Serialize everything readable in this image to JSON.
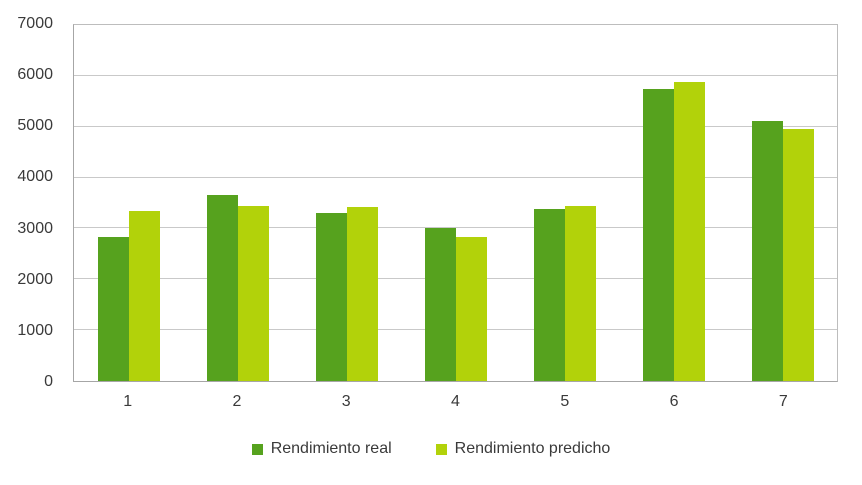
{
  "chart_data": {
    "type": "bar",
    "title": "",
    "xlabel": "",
    "ylabel": "",
    "categories": [
      "1",
      "2",
      "3",
      "4",
      "5",
      "6",
      "7"
    ],
    "series": [
      {
        "name": "Rendimiento real",
        "color": "#56a21e",
        "values": [
          2830,
          3650,
          3300,
          3000,
          3390,
          5750,
          5120
        ]
      },
      {
        "name": "Rendimiento predicho",
        "color": "#b2d20a",
        "values": [
          3350,
          3450,
          3430,
          2840,
          3450,
          5880,
          4950
        ]
      }
    ],
    "ylim": [
      0,
      7000
    ],
    "yticks": [
      0,
      1000,
      2000,
      3000,
      4000,
      5000,
      6000,
      7000
    ],
    "grid": true,
    "legend_position": "bottom"
  },
  "colors": {
    "background": "#ffffff",
    "gridline": "#c9c9c9",
    "axis_border": "#bdbdbd",
    "label_text": "#3a3a3a"
  }
}
